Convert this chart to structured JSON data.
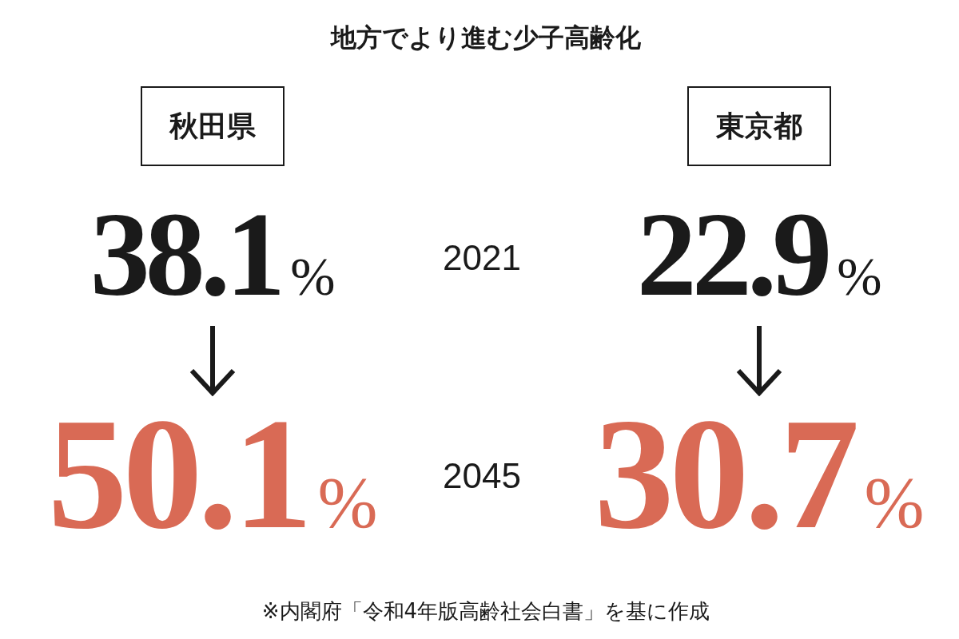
{
  "chart_data": {
    "type": "other",
    "title": "地方でより進む少子高齢化",
    "categories": [
      "秋田県",
      "東京都"
    ],
    "series": [
      {
        "name": "2021",
        "colors": [
          "#1a1a1a",
          "#1a1a1a"
        ],
        "values": [
          38.1,
          22.9
        ],
        "value_labels": [
          "38.1%",
          "22.9%"
        ]
      },
      {
        "name": "2045",
        "colors": [
          "#d96a55",
          "#d96a55"
        ],
        "values": [
          50.1,
          30.7
        ],
        "value_labels": [
          "50.1%",
          "30.7%"
        ]
      }
    ],
    "annotations": [
      "※内閣府「令和4年版高齢社会白書」を基に作成"
    ]
  }
}
